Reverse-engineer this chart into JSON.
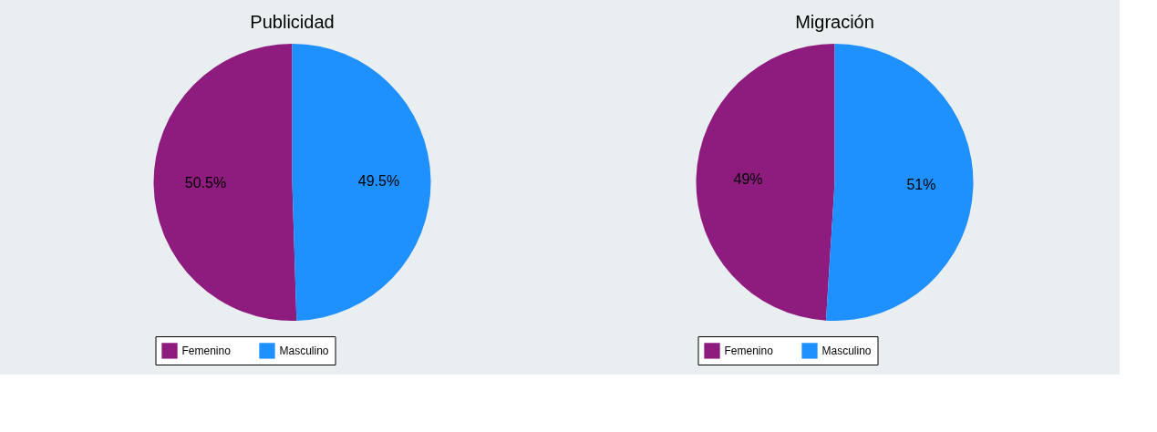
{
  "chart_data": [
    {
      "type": "pie",
      "title": "Publicidad",
      "categories": [
        "Femenino",
        "Masculino"
      ],
      "values": [
        50.5,
        49.5
      ],
      "colors": [
        "#8e1b7e",
        "#1e90ff"
      ],
      "value_labels": [
        "50.5%",
        "49.5%"
      ],
      "legend": "bottom"
    },
    {
      "type": "pie",
      "title": "Migración",
      "categories": [
        "Femenino",
        "Masculino"
      ],
      "values": [
        49,
        51
      ],
      "colors": [
        "#8e1b7e",
        "#1e90ff"
      ],
      "value_labels": [
        "49%",
        "51%"
      ],
      "legend": "bottom"
    }
  ]
}
